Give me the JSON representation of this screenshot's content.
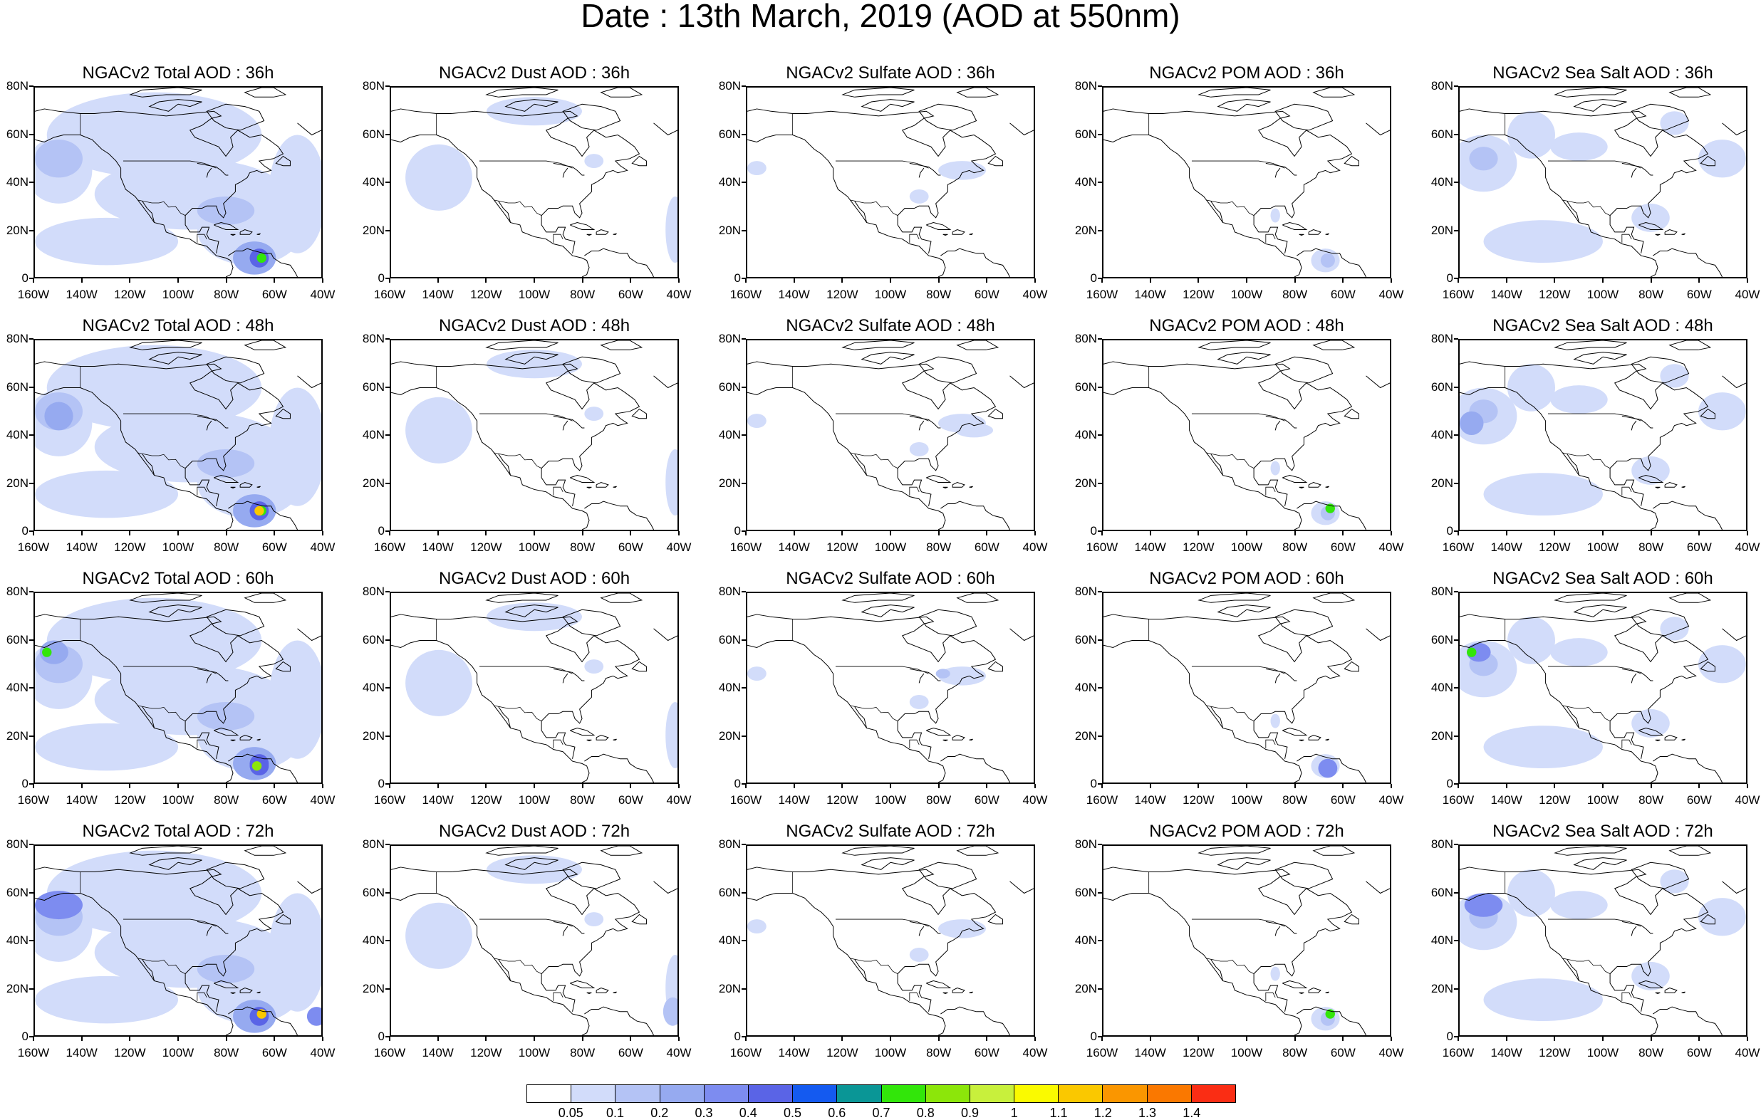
{
  "page": {
    "title": "Date : 13th March, 2019 (AOD at 550nm)"
  },
  "panels": [
    {
      "title": "NGACv2 Total AOD : 36h",
      "variable": "Total",
      "hour": "36h"
    },
    {
      "title": "NGACv2 Dust AOD : 36h",
      "variable": "Dust",
      "hour": "36h"
    },
    {
      "title": "NGACv2 Sulfate AOD : 36h",
      "variable": "Sulfate",
      "hour": "36h"
    },
    {
      "title": "NGACv2 POM AOD : 36h",
      "variable": "POM",
      "hour": "36h"
    },
    {
      "title": "NGACv2 Sea Salt AOD : 36h",
      "variable": "Sea Salt",
      "hour": "36h"
    },
    {
      "title": "NGACv2 Total AOD : 48h",
      "variable": "Total",
      "hour": "48h"
    },
    {
      "title": "NGACv2 Dust AOD : 48h",
      "variable": "Dust",
      "hour": "48h"
    },
    {
      "title": "NGACv2 Sulfate AOD : 48h",
      "variable": "Sulfate",
      "hour": "48h"
    },
    {
      "title": "NGACv2 POM AOD : 48h",
      "variable": "POM",
      "hour": "48h"
    },
    {
      "title": "NGACv2 Sea Salt AOD : 48h",
      "variable": "Sea Salt",
      "hour": "48h"
    },
    {
      "title": "NGACv2 Total AOD : 60h",
      "variable": "Total",
      "hour": "60h"
    },
    {
      "title": "NGACv2 Dust AOD : 60h",
      "variable": "Dust",
      "hour": "60h"
    },
    {
      "title": "NGACv2 Sulfate AOD : 60h",
      "variable": "Sulfate",
      "hour": "60h"
    },
    {
      "title": "NGACv2 POM AOD : 60h",
      "variable": "POM",
      "hour": "60h"
    },
    {
      "title": "NGACv2 Sea Salt AOD : 60h",
      "variable": "Sea Salt",
      "hour": "60h"
    },
    {
      "title": "NGACv2 Total AOD : 72h",
      "variable": "Total",
      "hour": "72h"
    },
    {
      "title": "NGACv2 Dust AOD : 72h",
      "variable": "Dust",
      "hour": "72h"
    },
    {
      "title": "NGACv2 Sulfate AOD : 72h",
      "variable": "Sulfate",
      "hour": "72h"
    },
    {
      "title": "NGACv2 POM AOD : 72h",
      "variable": "POM",
      "hour": "72h"
    },
    {
      "title": "NGACv2 Sea Salt  AOD : 72h",
      "variable": "Sea Salt",
      "hour": "72h"
    }
  ],
  "axes": {
    "lat_labels": [
      "80N",
      "60N",
      "40N",
      "20N",
      "0"
    ],
    "lon_labels": [
      "160W",
      "140W",
      "120W",
      "100W",
      "80W",
      "60W",
      "40W"
    ],
    "lat_range": [
      0,
      80
    ],
    "lon_range": [
      -160,
      -40
    ]
  },
  "colorbar": {
    "colors": [
      "#ffffff",
      "#d2dcfa",
      "#b4c3f5",
      "#96aaf0",
      "#7d8cf0",
      "#5a64e6",
      "#145af0",
      "#0a9696",
      "#32e60a",
      "#8ce60a",
      "#c8f03c",
      "#fafa00",
      "#fac800",
      "#fa9600",
      "#fa7800",
      "#fa2d14"
    ],
    "labels": [
      "0.05",
      "0.1",
      "0.2",
      "0.3",
      "0.4",
      "0.5",
      "0.6",
      "0.7",
      "0.8",
      "0.9",
      "1",
      "1.1",
      "1.2",
      "1.3",
      "1.4"
    ]
  }
}
